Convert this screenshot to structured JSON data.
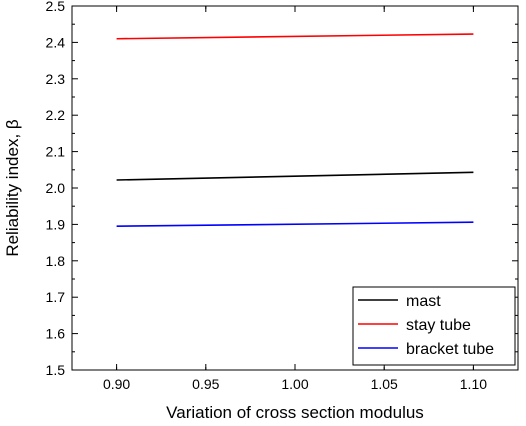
{
  "chart_data": {
    "type": "line",
    "xlabel": "Variation of cross section modulus",
    "ylabel": "Reliability index, β",
    "xlim": [
      0.875,
      1.125
    ],
    "ylim": [
      1.5,
      2.5
    ],
    "x_ticks": [
      "0.90",
      "0.95",
      "1.00",
      "1.05",
      "1.10"
    ],
    "y_ticks": [
      "1.5",
      "1.6",
      "1.7",
      "1.8",
      "1.9",
      "2.0",
      "2.1",
      "2.2",
      "2.3",
      "2.4",
      "2.5"
    ],
    "grid": false,
    "legend_position": "bottom-right",
    "series": [
      {
        "name": "mast",
        "color": "#000000",
        "x": [
          0.9,
          1.1
        ],
        "y": [
          2.022,
          2.043
        ]
      },
      {
        "name": "stay tube",
        "color": "#ff0000",
        "x": [
          0.9,
          1.1
        ],
        "y": [
          2.41,
          2.423
        ]
      },
      {
        "name": "bracket tube",
        "color": "#0000ff",
        "x": [
          0.9,
          1.1
        ],
        "y": [
          1.895,
          1.906
        ]
      }
    ]
  }
}
